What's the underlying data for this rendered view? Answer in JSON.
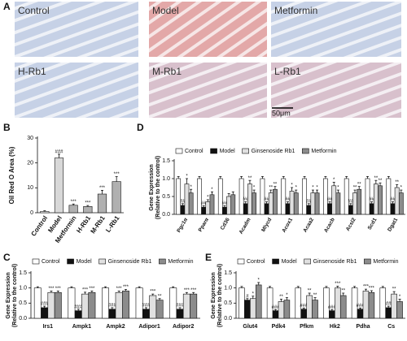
{
  "panel_a": {
    "label": "A",
    "images": [
      "Control",
      "Model",
      "Metformin",
      "H-Rb1",
      "M-Rb1",
      "L-Rb1"
    ],
    "scale_bar": "50μm"
  },
  "chart_data": [
    {
      "type": "bar",
      "panel": "B",
      "ylabel": "Oil Red O Area (%)",
      "categories": [
        "Control",
        "Model",
        "Metformin",
        "H-Rb1",
        "M-Rb1",
        "L-Rb1"
      ],
      "values": [
        0.5,
        22,
        3,
        2.5,
        7.5,
        12.5
      ],
      "errors": [
        0.3,
        1.5,
        0.5,
        0.4,
        1.5,
        2
      ],
      "significance": [
        null,
        "###",
        "***",
        "***",
        "***",
        "***"
      ],
      "colors": [
        "#ffffff",
        "#d8d8d8",
        "#b0b0b0",
        "#b0b0b0",
        "#b0b0b0",
        "#b0b0b0"
      ],
      "ylim": [
        0,
        30
      ],
      "yticks": [
        0,
        10,
        20,
        30
      ]
    },
    {
      "type": "bar",
      "panel": "C",
      "ylabel": [
        "Gene Expression",
        "(Relative to the control)"
      ],
      "categories": [
        "Irs1",
        "Ampk1",
        "Ampk2",
        "Adipor1",
        "Adipor2"
      ],
      "legend": "top",
      "series": [
        {
          "name": "Control",
          "color": "#ffffff",
          "values": [
            1,
            1,
            1,
            1,
            1
          ],
          "errors": [
            0.04,
            0.04,
            0.04,
            0.04,
            0.04
          ],
          "significance": [
            null,
            null,
            null,
            null,
            null
          ]
        },
        {
          "name": "Model",
          "color": "#111111",
          "values": [
            0.35,
            0.25,
            0.3,
            0.3,
            0.3
          ],
          "errors": [
            0.05,
            0.05,
            0.05,
            0.05,
            0.05
          ],
          "significance": [
            "###",
            "###",
            "###",
            "###",
            "###"
          ]
        },
        {
          "name": "Ginsenoside Rb1",
          "color": "#e0e0e0",
          "values": [
            0.85,
            0.8,
            0.85,
            0.75,
            0.8
          ],
          "errors": [
            0.05,
            0.06,
            0.05,
            0.05,
            0.05
          ],
          "significance": [
            "***",
            "***",
            "***",
            "***",
            "***"
          ]
        },
        {
          "name": "Metformin",
          "color": "#8c8c8c",
          "values": [
            0.85,
            0.85,
            0.9,
            0.6,
            0.8
          ],
          "errors": [
            0.05,
            0.05,
            0.05,
            0.05,
            0.05
          ],
          "significance": [
            "***",
            "***",
            "***",
            "**",
            "***"
          ]
        }
      ],
      "ylim": [
        0,
        1.5
      ],
      "yticks": [
        {
          "value": 0,
          "label": "0.0"
        },
        0.5,
        {
          "value": 1,
          "label": "1.0"
        },
        1.5
      ]
    },
    {
      "type": "bar",
      "panel": "D",
      "ylabel": [
        "Gene Expression",
        "(Relative to the control)"
      ],
      "categories": [
        "Pgc1α",
        "Pparα",
        "Cd36",
        "Acadm",
        "Mlycd",
        "Acox1",
        "Acaa2",
        "Acacb",
        "Acsl2",
        "Scd1",
        "Dgat1"
      ],
      "legend": "top",
      "series": [
        {
          "name": "Control",
          "color": "#ffffff",
          "values": [
            1,
            1,
            1,
            1,
            1,
            1,
            1,
            1,
            1,
            1,
            1
          ],
          "errors": [
            0.06,
            0.06,
            0.06,
            0.06,
            0.06,
            0.06,
            0.06,
            0.06,
            0.06,
            0.06,
            0.06
          ],
          "significance": [
            null,
            null,
            null,
            null,
            null,
            null,
            null,
            null,
            null,
            null,
            null
          ]
        },
        {
          "name": "Model",
          "color": "#111111",
          "values": [
            0.25,
            0.2,
            0.2,
            0.3,
            0.3,
            0.3,
            0.25,
            0.3,
            0.25,
            0.3,
            0.3
          ],
          "errors": [
            0.05,
            0.04,
            0.04,
            0.05,
            0.05,
            0.05,
            0.05,
            0.05,
            0.05,
            0.05,
            0.05
          ],
          "significance": [
            "##",
            "##",
            "##",
            "##",
            "##",
            "##",
            "##",
            "##",
            "##",
            "##",
            "##"
          ]
        },
        {
          "name": "Ginsenoside Rb1",
          "color": "#e0e0e0",
          "values": [
            0.85,
            0.35,
            0.5,
            0.85,
            0.6,
            0.65,
            0.6,
            0.8,
            0.6,
            0.85,
            0.75
          ],
          "errors": [
            0.15,
            0.06,
            0.08,
            0.1,
            0.08,
            0.1,
            0.08,
            0.1,
            0.08,
            0.1,
            0.08
          ],
          "significance": [
            "*",
            "*",
            null,
            "**",
            "**",
            "*",
            "*",
            "*",
            "**",
            "**",
            "**"
          ]
        },
        {
          "name": "Metformin",
          "color": "#8c8c8c",
          "values": [
            0.6,
            0.55,
            0.55,
            0.6,
            0.7,
            0.6,
            0.6,
            0.6,
            0.7,
            0.8,
            0.6
          ],
          "errors": [
            0.1,
            0.08,
            0.08,
            0.08,
            0.08,
            0.08,
            0.08,
            0.08,
            0.08,
            0.08,
            0.08
          ],
          "significance": [
            "*",
            "*",
            null,
            "*",
            "**",
            "*",
            "*",
            "*",
            "**",
            "**",
            "*"
          ]
        }
      ],
      "ylim": [
        0,
        1.5
      ],
      "yticks": [
        {
          "value": 0,
          "label": "0.0"
        },
        0.5,
        {
          "value": 1,
          "label": "1.0"
        },
        1.5
      ]
    },
    {
      "type": "bar",
      "panel": "E",
      "ylabel": [
        "Gene Expression",
        "(Relative to the control)"
      ],
      "categories": [
        "Glut4",
        "Pdk4",
        "Pfkm",
        "Hk2",
        "Pdha",
        "Cs"
      ],
      "legend": "top",
      "series": [
        {
          "name": "Control",
          "color": "#ffffff",
          "values": [
            1,
            1,
            1,
            1,
            1,
            1
          ],
          "errors": [
            0.05,
            0.05,
            0.05,
            0.05,
            0.05,
            0.05
          ],
          "significance": [
            null,
            null,
            null,
            null,
            null,
            null
          ]
        },
        {
          "name": "Model",
          "color": "#111111",
          "values": [
            0.6,
            0.25,
            0.3,
            0.25,
            0.3,
            0.35
          ],
          "errors": [
            0.05,
            0.04,
            0.04,
            0.04,
            0.04,
            0.05
          ],
          "significance": [
            "#",
            "###",
            "###",
            "###",
            "###",
            "##"
          ]
        },
        {
          "name": "Ginsenoside Rb1",
          "color": "#e0e0e0",
          "values": [
            0.65,
            0.55,
            0.75,
            1,
            0.9,
            0.8
          ],
          "errors": [
            0.08,
            0.08,
            0.08,
            0.06,
            0.06,
            0.08
          ],
          "significance": [
            "*",
            "**",
            "**",
            "***",
            "***",
            "**"
          ]
        },
        {
          "name": "Metformin",
          "color": "#8c8c8c",
          "values": [
            1.1,
            0.6,
            0.6,
            0.75,
            0.85,
            0.55
          ],
          "errors": [
            0.08,
            0.08,
            0.08,
            0.08,
            0.06,
            0.08
          ],
          "significance": [
            "*",
            "*",
            "**",
            "**",
            "***",
            "*"
          ]
        }
      ],
      "ylim": [
        0,
        1.5
      ],
      "yticks": [
        {
          "value": 0,
          "label": "0.0"
        },
        0.5,
        {
          "value": 1,
          "label": "1.0"
        },
        1.5
      ]
    }
  ]
}
